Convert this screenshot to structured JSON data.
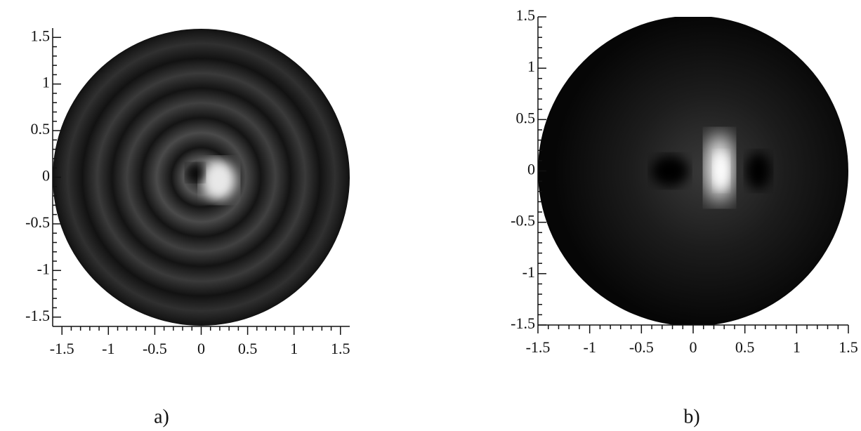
{
  "chart_data": [
    {
      "type": "image",
      "caption": "a)",
      "xlim": [
        -1.6,
        1.6
      ],
      "ylim": [
        -1.6,
        1.6
      ],
      "xticks": [
        -1.5,
        -1,
        -0.5,
        0,
        0.5,
        1,
        1.5
      ],
      "yticks": [
        -1.5,
        -1,
        -0.5,
        0,
        0.5,
        1,
        1.5
      ]
    },
    {
      "type": "image",
      "caption": "b)",
      "xlim": [
        -1.5,
        1.5
      ],
      "ylim": [
        -1.5,
        1.5
      ],
      "xticks": [
        -1.5,
        -1,
        -0.5,
        0,
        0.5,
        1,
        1.5
      ],
      "yticks": [
        -1.5,
        -1,
        -0.5,
        0,
        0.5,
        1,
        1.5
      ]
    }
  ]
}
